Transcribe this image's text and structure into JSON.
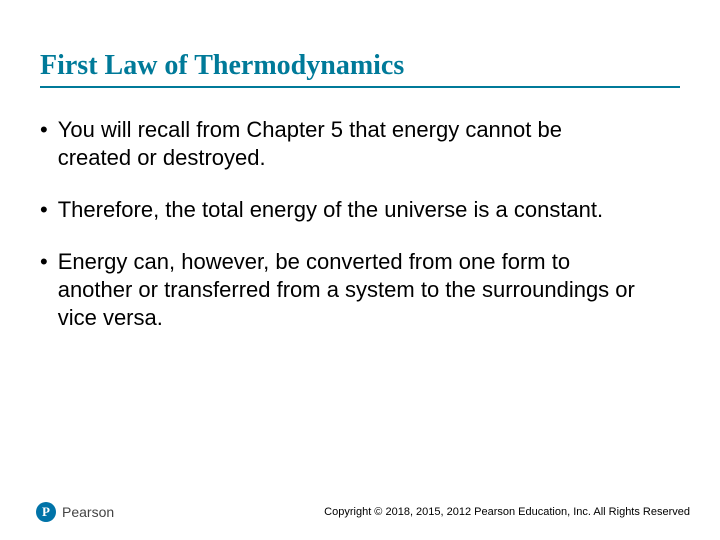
{
  "title": "First Law of Thermodynamics",
  "title_color": "#007a99",
  "title_fontsize": 28,
  "title_font_family": "Georgia, 'Times New Roman', serif",
  "underline_color": "#007a99",
  "bullets": [
    "You will recall from Chapter 5 that energy cannot be created or destroyed.",
    "Therefore, the total energy of the universe is a constant.",
    "Energy can, however, be converted from one form to another or transferred from a system to the surroundings or vice versa."
  ],
  "bullet_fontsize": 22,
  "bullet_color": "#000000",
  "bullet_marker": "•",
  "logo": {
    "letter": "P",
    "brand": "Pearson",
    "icon_bg": "#0073a8",
    "icon_fg": "#ffffff"
  },
  "copyright": "Copyright © 2018, 2015, 2012 Pearson Education, Inc. All Rights Reserved",
  "background_color": "#ffffff"
}
